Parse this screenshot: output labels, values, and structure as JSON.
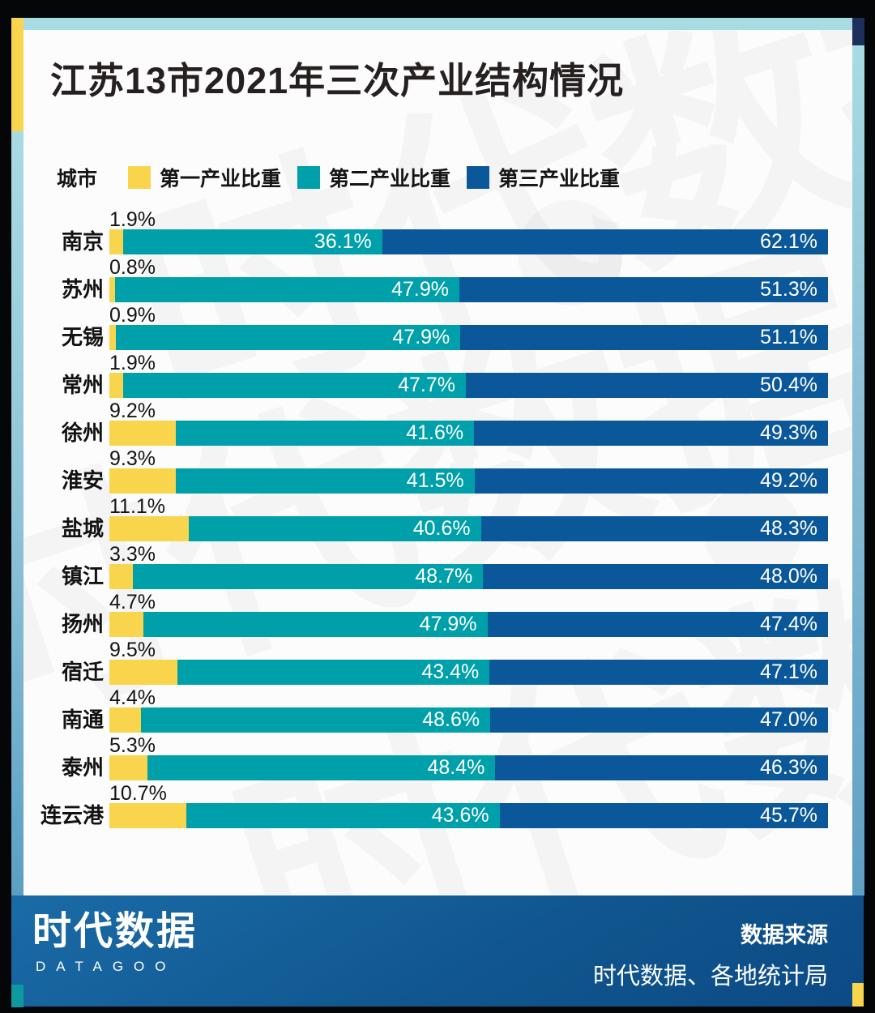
{
  "title": "江苏13市2021年三次产业结构情况",
  "legend": {
    "city_header": "城市",
    "items": [
      {
        "label": "第一产业比重",
        "color": "#F9D54E"
      },
      {
        "label": "第二产业比重",
        "color": "#00A0AA"
      },
      {
        "label": "第三产业比重",
        "color": "#0A579A"
      }
    ]
  },
  "chart_data": {
    "type": "bar",
    "orientation": "horizontal",
    "stacked": true,
    "unit": "%",
    "xlim": [
      0,
      100
    ],
    "grid": false,
    "value_labels": "primary above bar start; secondary and tertiary white, inside segment right-aligned",
    "categories": [
      "南京",
      "苏州",
      "无锡",
      "常州",
      "徐州",
      "淮安",
      "盐城",
      "镇江",
      "扬州",
      "宿迁",
      "南通",
      "泰州",
      "连云港"
    ],
    "series": [
      {
        "name": "第一产业比重",
        "color": "#F9D54E",
        "values": [
          1.9,
          0.8,
          0.9,
          1.9,
          9.2,
          9.3,
          11.1,
          3.3,
          4.7,
          9.5,
          4.4,
          5.3,
          10.7
        ]
      },
      {
        "name": "第二产业比重",
        "color": "#00A0AA",
        "values": [
          36.1,
          47.9,
          47.9,
          47.7,
          41.6,
          41.5,
          40.6,
          48.7,
          47.9,
          43.4,
          48.6,
          48.4,
          43.6
        ]
      },
      {
        "name": "第三产业比重",
        "color": "#0A579A",
        "values": [
          62.1,
          51.3,
          51.1,
          50.4,
          49.3,
          49.2,
          48.3,
          48.0,
          47.4,
          47.1,
          47.0,
          46.3,
          45.7
        ]
      }
    ]
  },
  "watermark": {
    "text": "时代数据"
  },
  "footer": {
    "logo_cn": "时代数据",
    "logo_en": "DATAGOO",
    "source_label": "数据来源",
    "source_value": "时代数据、各地统计局"
  },
  "colors": {
    "primary_yellow": "#F9D54E",
    "secondary_teal": "#00A0AA",
    "tertiary_navy": "#0A579A",
    "strip_light_blue": "#A9DBE3",
    "corner_navy": "#1C2F5D",
    "corner_teal": "#0F98A0",
    "footer_blue_top": "#1A6BA7",
    "footer_blue_bottom": "#0C4A85",
    "frame_black": "#040607",
    "card_white": "#FCFCFC"
  }
}
